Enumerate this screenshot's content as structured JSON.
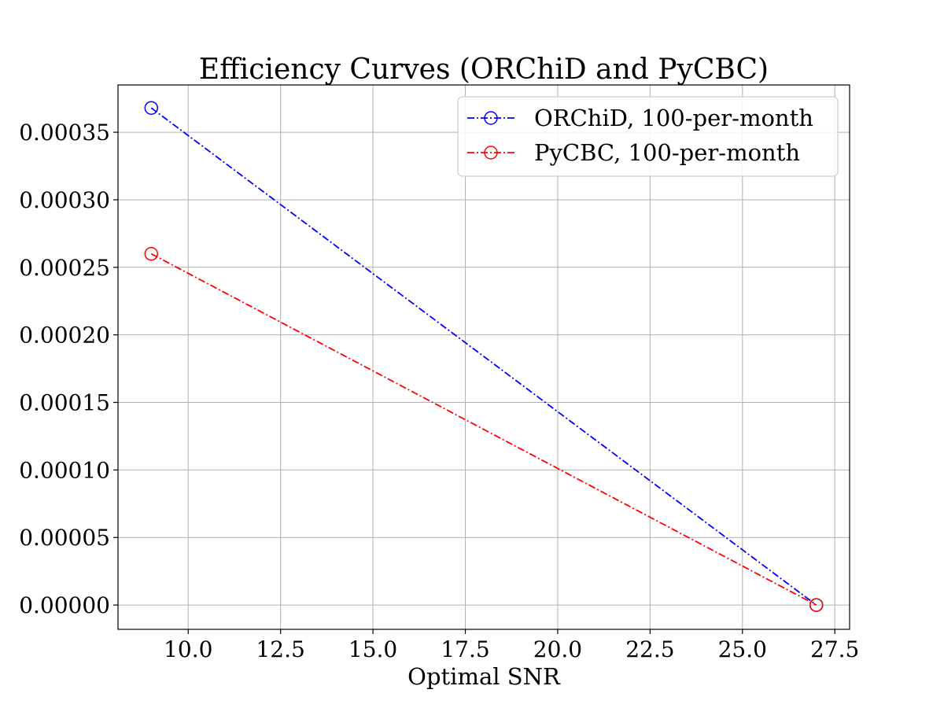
{
  "chart_data": {
    "type": "line",
    "title": "Efficiency Curves (ORChiD and PyCBC)",
    "xlabel": "Optimal SNR",
    "ylabel": "",
    "xlim": [
      8.1,
      27.9
    ],
    "ylim": [
      -1.8e-05,
      0.000385
    ],
    "xticks": [
      10.0,
      12.5,
      15.0,
      17.5,
      20.0,
      22.5,
      25.0,
      27.5
    ],
    "xtick_labels": [
      "10.0",
      "12.5",
      "15.0",
      "17.5",
      "20.0",
      "22.5",
      "25.0",
      "27.5"
    ],
    "yticks": [
      0,
      5e-05,
      0.0001,
      0.00015,
      0.0002,
      0.00025,
      0.0003,
      0.00035
    ],
    "ytick_labels": [
      "0.00000",
      "0.00005",
      "0.00010",
      "0.00015",
      "0.00020",
      "0.00025",
      "0.00030",
      "0.00035"
    ],
    "grid": true,
    "legend_position": "top-right",
    "series": [
      {
        "name": "ORChiD, 100-per-month",
        "color": "#0000ff",
        "marker": "open-circle",
        "linestyle": "dash-dot",
        "x": [
          9.0,
          27.0
        ],
        "y": [
          0.000368,
          0.0
        ]
      },
      {
        "name": "PyCBC, 100-per-month",
        "color": "#ff0000",
        "marker": "open-circle",
        "linestyle": "dash-dot",
        "x": [
          9.0,
          27.0
        ],
        "y": [
          0.00026,
          0.0
        ]
      }
    ]
  }
}
